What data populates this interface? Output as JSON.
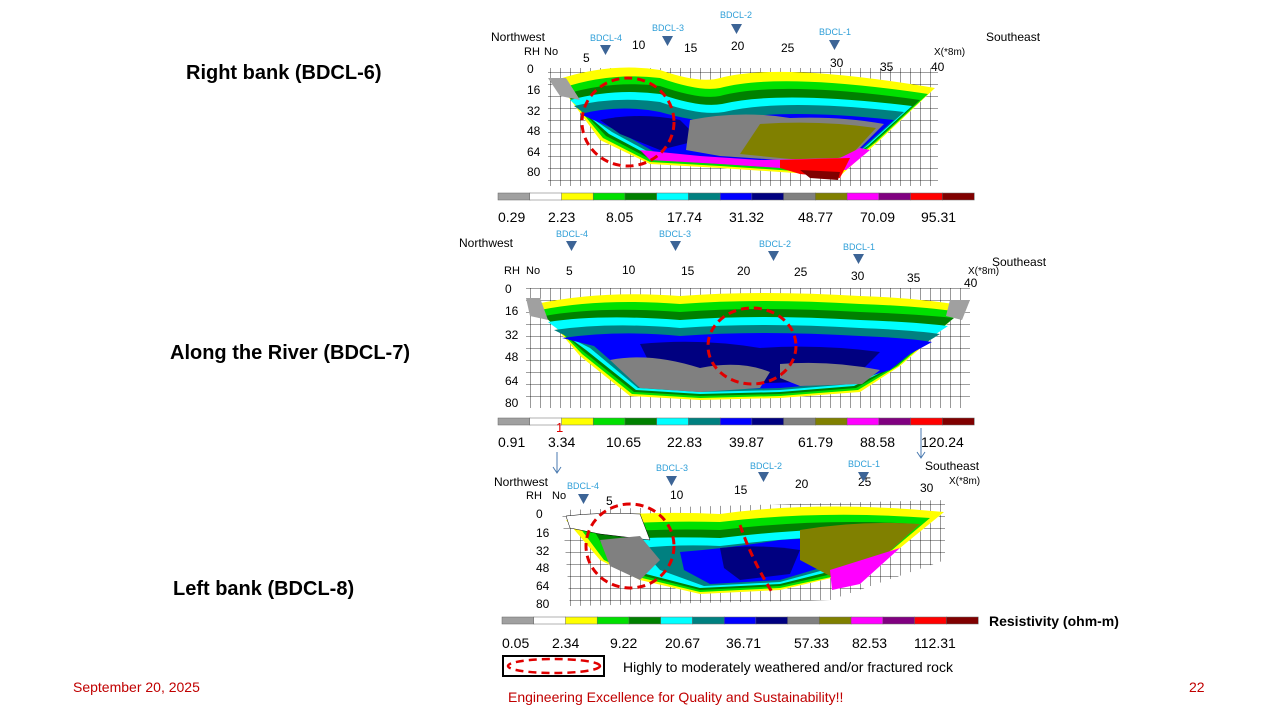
{
  "sections": [
    {
      "label": "Right bank (BDCL-6)",
      "nw": "Northwest",
      "se": "Southeast",
      "rh": "RH",
      "no": "No",
      "xunit": "X(*8m)",
      "xticks": [
        "5",
        "10",
        "15",
        "20",
        "25",
        "30",
        "35",
        "40"
      ],
      "depth_ticks": [
        "0",
        "16",
        "32",
        "48",
        "64",
        "80"
      ],
      "boreholes": [
        "BDCL-4",
        "BDCL-3",
        "BDCL-2",
        "BDCL-1"
      ],
      "scale_values": [
        "0.29",
        "2.23",
        "8.05",
        "17.74",
        "31.32",
        "48.77",
        "70.09",
        "95.31"
      ]
    },
    {
      "label": "Along the River (BDCL-7)",
      "nw": "Northwest",
      "se": "Southeast",
      "rh": "RH",
      "no": "No",
      "xunit": "X(*8m)",
      "xticks": [
        "5",
        "10",
        "15",
        "20",
        "25",
        "30",
        "35",
        "40"
      ],
      "depth_ticks": [
        "0",
        "16",
        "32",
        "48",
        "64",
        "80"
      ],
      "boreholes": [
        "BDCL-4",
        "BDCL-3",
        "BDCL-2",
        "BDCL-1"
      ],
      "scale_values": [
        "0.91",
        "3.34",
        "10.65",
        "22.83",
        "39.87",
        "61.79",
        "88.58",
        "120.24"
      ],
      "marker_one": "1"
    },
    {
      "label": "Left bank (BDCL-8)",
      "nw": "Northwest",
      "se": "Southeast",
      "rh": "RH",
      "no": "No",
      "xunit": "X(*8m)",
      "xticks": [
        "5",
        "10",
        "15",
        "20",
        "25",
        "30"
      ],
      "depth_ticks": [
        "0",
        "16",
        "32",
        "48",
        "64",
        "80"
      ],
      "boreholes": [
        "BDCL-4",
        "BDCL-3",
        "BDCL-2",
        "BDCL-1"
      ],
      "scale_values": [
        "0.05",
        "2.34",
        "9.22",
        "20.67",
        "36.71",
        "57.33",
        "82.53",
        "112.31"
      ]
    }
  ],
  "resistivity_label": "Resistivity (ohm-m)",
  "legend_text": "Highly to moderately weathered and/or fractured rock",
  "footer": {
    "date": "September 20, 2025",
    "tagline": "Engineering Excellence for Quality and Sustainability!!",
    "page": "22"
  },
  "colors": {
    "scale": [
      "#a0a0a0",
      "#ffffff",
      "#ffff00",
      "#00e000",
      "#008000",
      "#00ffff",
      "#008080",
      "#0000ff",
      "#000080",
      "#808080",
      "#808000",
      "#ff00ff",
      "#800080",
      "#ff0000",
      "#800000"
    ],
    "borehole": "#2f9fd8",
    "marker": "#3c6496",
    "ellipse": "#e00000",
    "footer": "#c00000"
  }
}
